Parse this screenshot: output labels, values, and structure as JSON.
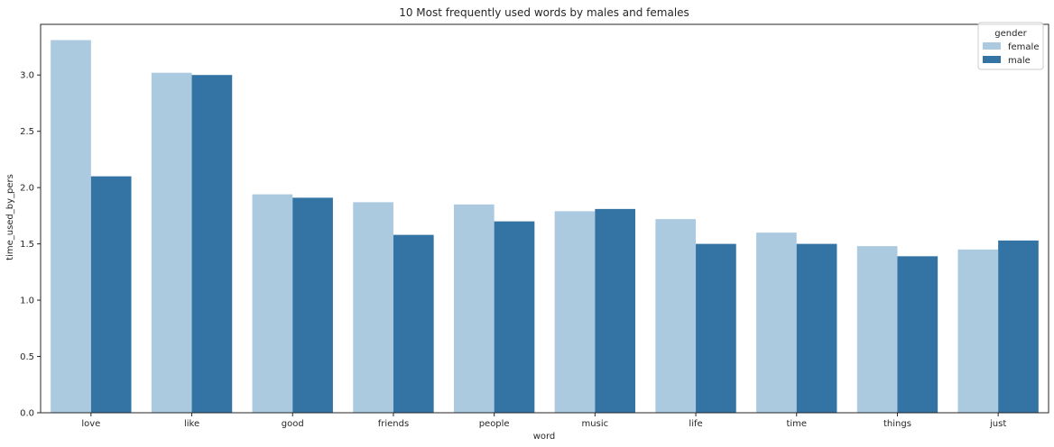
{
  "chart_data": {
    "type": "bar",
    "title": "10 Most frequently used words by males and females",
    "xlabel": "word",
    "ylabel": "time_used_by_pers",
    "categories": [
      "love",
      "like",
      "good",
      "friends",
      "people",
      "music",
      "life",
      "time",
      "things",
      "just"
    ],
    "series": [
      {
        "name": "female",
        "color": "#abcae0",
        "values": [
          3.31,
          3.02,
          1.94,
          1.87,
          1.85,
          1.79,
          1.72,
          1.6,
          1.48,
          1.45
        ]
      },
      {
        "name": "male",
        "color": "#3374a4",
        "values": [
          2.1,
          3.0,
          1.91,
          1.58,
          1.7,
          1.81,
          1.5,
          1.5,
          1.39,
          1.53
        ]
      }
    ],
    "ylim": [
      0,
      3.45
    ],
    "yticks": [
      "0.0",
      "0.5",
      "1.0",
      "1.5",
      "2.0",
      "2.5",
      "3.0"
    ],
    "legend": {
      "title": "gender",
      "placement": "top-right"
    },
    "grid": false
  }
}
